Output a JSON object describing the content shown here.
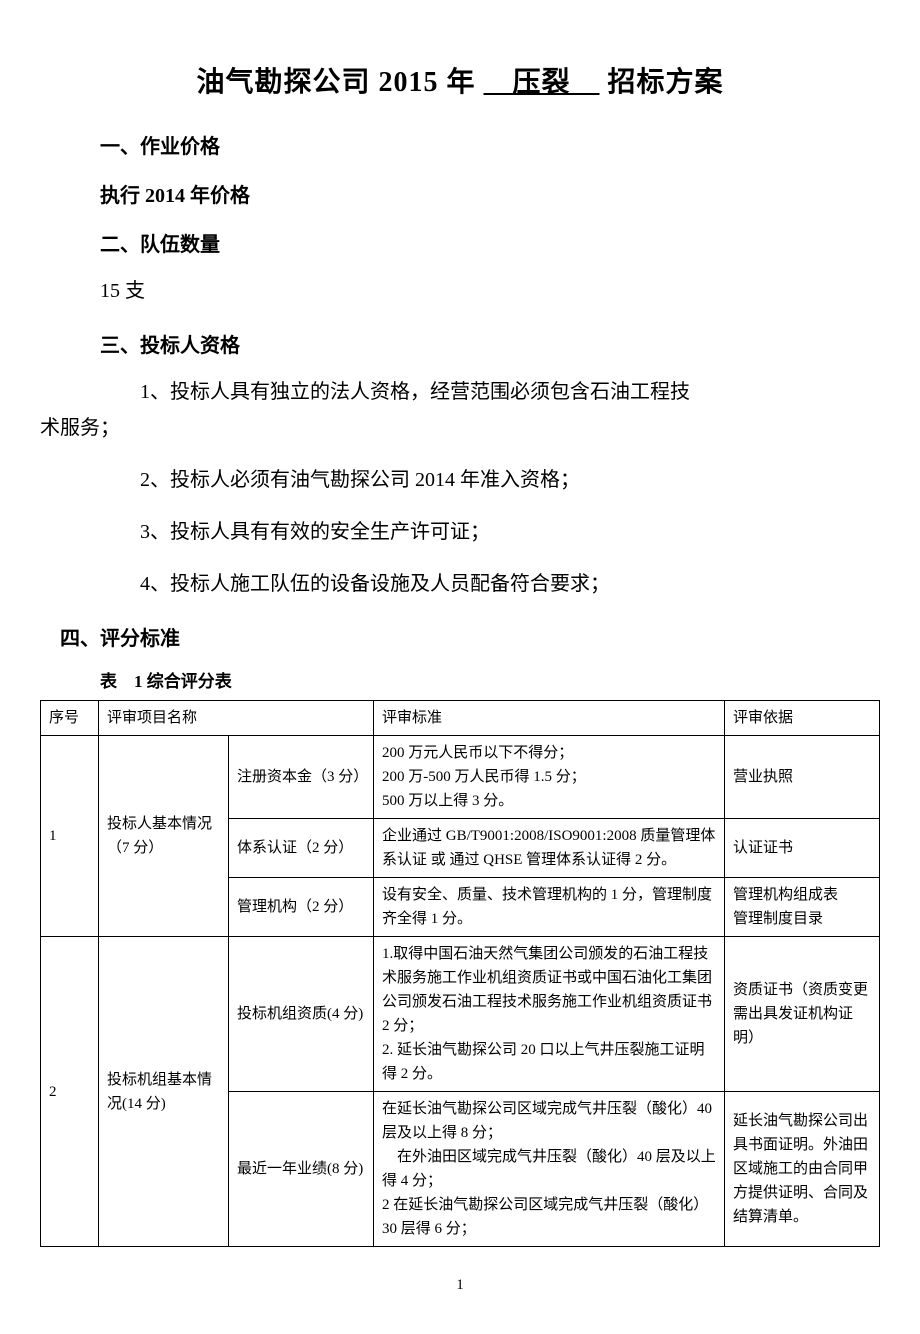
{
  "title": {
    "prefix": "油气勘探公司 2015 年",
    "underlined": "　压裂　",
    "suffix": "招标方案"
  },
  "sections": {
    "s1_heading": "一、作业价格",
    "s1_body": "执行 2014 年价格",
    "s2_heading": "二、队伍数量",
    "s2_body": "15 支",
    "s3_heading": "三、投标人资格",
    "s3_item1_a": "1、投标人具有独立的法人资格，经营范围必须包含石油工程技",
    "s3_item1_b": "术服务；",
    "s3_item2": "2、投标人必须有油气勘探公司 2014 年准入资格；",
    "s3_item3": "3、投标人具有有效的安全生产许可证；",
    "s3_item4": "4、投标人施工队伍的设备设施及人员配备符合要求；",
    "s4_heading": "四、评分标准",
    "table_caption": "表　1 综合评分表"
  },
  "table": {
    "headers": {
      "num": "序号",
      "name": "评审项目名称",
      "criteria": "评审标准",
      "basis": "评审依据"
    },
    "rows": [
      {
        "num": "1",
        "name": "投标人基本情况（7 分）",
        "subrows": [
          {
            "sub": "注册资本金（3 分）",
            "criteria": "200 万元人民币以下不得分；\n200 万-500 万人民币得 1.5 分；\n500 万以上得 3 分。",
            "basis": "营业执照"
          },
          {
            "sub": "体系认证（2 分）",
            "criteria": "企业通过 GB/T9001:2008/ISO9001:2008 质量管理体系认证 或 通过 QHSE 管理体系认证得 2 分。",
            "basis": "认证证书"
          },
          {
            "sub": "管理机构（2 分）",
            "criteria": "设有安全、质量、技术管理机构的 1 分，管理制度齐全得 1 分。",
            "basis": "管理机构组成表\n管理制度目录"
          }
        ]
      },
      {
        "num": "2",
        "name": "投标机组基本情况(14 分)",
        "subrows": [
          {
            "sub": "投标机组资质(4 分)",
            "criteria": "1.取得中国石油天然气集团公司颁发的石油工程技术服务施工作业机组资质证书或中国石油化工集团公司颁发石油工程技术服务施工作业机组资质证书 2 分；\n2. 延长油气勘探公司 20 口以上气井压裂施工证明得 2 分。",
            "basis": "资质证书（资质变更需出具发证机构证明）"
          },
          {
            "sub": "最近一年业绩(8 分)",
            "criteria": "在延长油气勘探公司区域完成气井压裂（酸化）40 层及以上得 8 分；\n　在外油田区域完成气井压裂（酸化）40 层及以上得 4 分；\n2 在延长油气勘探公司区域完成气井压裂（酸化）30 层得 6 分；",
            "basis": "延长油气勘探公司出具书面证明。外油田区域施工的由合同甲方提供证明、合同及结算清单。"
          }
        ]
      }
    ]
  },
  "page_number": "1",
  "styling": {
    "background_color": "#ffffff",
    "text_color": "#000000",
    "border_color": "#000000",
    "title_fontsize": 28,
    "heading_fontsize": 20,
    "body_fontsize": 20,
    "table_fontsize": 15,
    "font_family": "SimSun"
  }
}
